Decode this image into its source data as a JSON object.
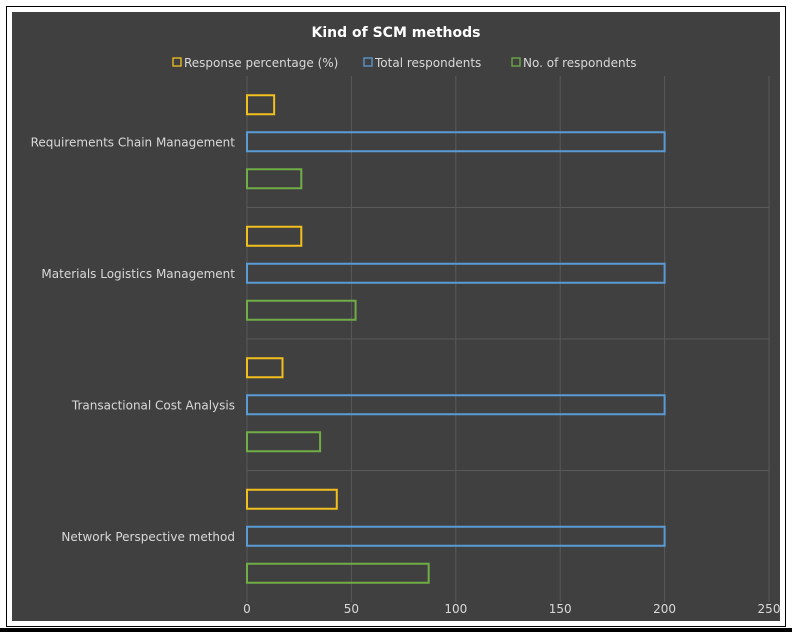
{
  "chart_data": {
    "type": "bar",
    "orientation": "horizontal",
    "title": "Kind of SCM methods",
    "categories": [
      "Requirements Chain Management",
      "Materials Logistics Management",
      "Transactional Cost Analysis",
      "Network Perspective method"
    ],
    "series": [
      {
        "name": "Response percentage (%)",
        "color": "#F2C01E",
        "values": [
          13,
          26,
          17,
          43
        ]
      },
      {
        "name": "Total respondents",
        "color": "#5B9BD5",
        "values": [
          200,
          200,
          200,
          200
        ]
      },
      {
        "name": "No. of respondents",
        "color": "#70AD47",
        "values": [
          26,
          52,
          35,
          87
        ]
      }
    ],
    "xlim": [
      0,
      250
    ],
    "xticks": [
      "0",
      "50",
      "100",
      "150",
      "200",
      "250"
    ],
    "grid": true,
    "legend_position": "top",
    "bar_style": "outline"
  }
}
